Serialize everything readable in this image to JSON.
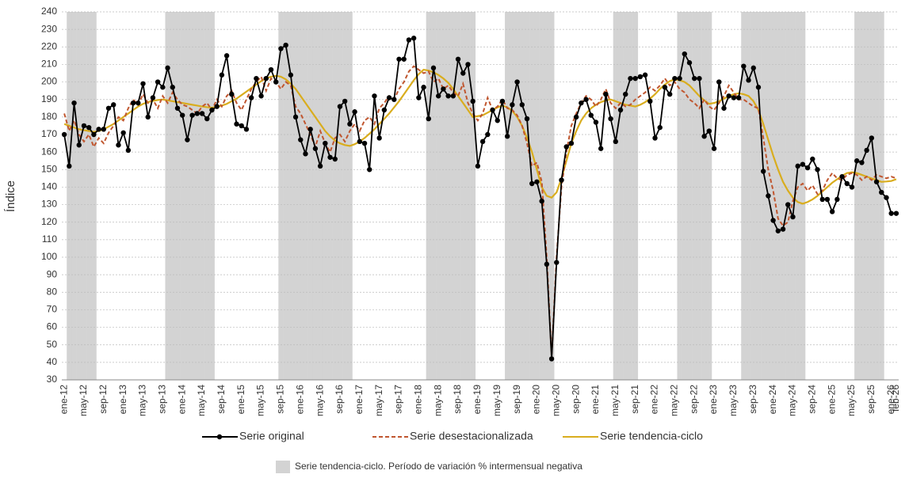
{
  "chart_data": {
    "type": "line",
    "y_label": "Índice",
    "shading_legend": "Serie tendencia-ciclo. Período de variación % intermensual negativa",
    "shading_color": "#d3d3d3",
    "grid": true,
    "ylim": [
      30,
      240
    ],
    "yticks": [
      30,
      40,
      50,
      60,
      70,
      80,
      90,
      100,
      110,
      120,
      130,
      140,
      150,
      160,
      170,
      180,
      190,
      200,
      210,
      220,
      230,
      240
    ],
    "categories": [
      "ene-12",
      null,
      null,
      null,
      "may-12",
      null,
      null,
      null,
      "sep-12",
      null,
      null,
      null,
      "ene-13",
      null,
      null,
      null,
      "may-13",
      null,
      null,
      null,
      "sep-13",
      null,
      null,
      null,
      "ene-14",
      null,
      null,
      null,
      "may-14",
      null,
      null,
      null,
      "sep-14",
      null,
      null,
      null,
      "ene-15",
      null,
      null,
      null,
      "may-15",
      null,
      null,
      null,
      "sep-15",
      null,
      null,
      null,
      "ene-16",
      null,
      null,
      null,
      "may-16",
      null,
      null,
      null,
      "sep-16",
      null,
      null,
      null,
      "ene-17",
      null,
      null,
      null,
      "may-17",
      null,
      null,
      null,
      "sep-17",
      null,
      null,
      null,
      "ene-18",
      null,
      null,
      null,
      "may-18",
      null,
      null,
      null,
      "sep-18",
      null,
      null,
      null,
      "ene-19",
      null,
      null,
      null,
      "may-19",
      null,
      null,
      null,
      "sep-19",
      null,
      null,
      null,
      "ene-20",
      null,
      null,
      null,
      "may-20",
      null,
      null,
      null,
      "sep-20",
      null,
      null,
      null,
      "ene-21",
      null,
      null,
      null,
      "may-21",
      null,
      null,
      null,
      "sep-21",
      null,
      null,
      null,
      "ene-22",
      null,
      null,
      null,
      "may-22",
      null,
      null,
      null,
      "sep-22",
      null,
      null,
      null,
      "ene-23",
      null,
      null,
      null,
      "may-23",
      null,
      null,
      null,
      "sep-23",
      null,
      null,
      null,
      "ene-24",
      null,
      null,
      null,
      "may-24",
      null,
      null,
      null,
      "sep-24",
      null,
      null,
      null,
      "ene-25",
      null,
      null,
      null,
      "may-25",
      null,
      null,
      null,
      "sep-25",
      null,
      null,
      null,
      "ene-26",
      "feb-26"
    ],
    "series": [
      {
        "name": "Serie original",
        "color": "#000000",
        "style": "solid-dots",
        "values": [
          170,
          152,
          188,
          164,
          175,
          174,
          170,
          173,
          173,
          185,
          187,
          164,
          171,
          161,
          188,
          188,
          199,
          180,
          191,
          200,
          197,
          208,
          197,
          185,
          181,
          167,
          181,
          182,
          182,
          179,
          184,
          186,
          204,
          215,
          193,
          176,
          175,
          173,
          191,
          202,
          192,
          202,
          207,
          200,
          219,
          221,
          204,
          180,
          167,
          159,
          173,
          162,
          152,
          165,
          157,
          156,
          186,
          189,
          176,
          183,
          166,
          165,
          150,
          192,
          168,
          184,
          191,
          190,
          213,
          213,
          224,
          225,
          191,
          197,
          179,
          208,
          192,
          196,
          192,
          192,
          213,
          205,
          210,
          189,
          152,
          166,
          170,
          184,
          178,
          189,
          169,
          187,
          200,
          187,
          179,
          142,
          143,
          132,
          96,
          42,
          97,
          144,
          163,
          165,
          180,
          188,
          190,
          181,
          177,
          162,
          193,
          179,
          166,
          184,
          193,
          202,
          202,
          203,
          204,
          189,
          168,
          174,
          197,
          193,
          202,
          202,
          216,
          211,
          202,
          202,
          169,
          172,
          162,
          200,
          185,
          192,
          191,
          191,
          209,
          201,
          208,
          197,
          149,
          135,
          121,
          115,
          116,
          130,
          123,
          152,
          153,
          151,
          156,
          150,
          133,
          133,
          126,
          133,
          146,
          142,
          140,
          155,
          154,
          161,
          168,
          143,
          137,
          134,
          125,
          125
        ]
      },
      {
        "name": "Serie desestacionalizada",
        "color": "#c0562f",
        "style": "dashed",
        "values": [
          182,
          172,
          178,
          170,
          166,
          170,
          163,
          168,
          165,
          171,
          175,
          180,
          178,
          185,
          190,
          187,
          193,
          188,
          190,
          185,
          192,
          188,
          194,
          190,
          187,
          186,
          184,
          182,
          186,
          188,
          184,
          190,
          186,
          192,
          195,
          188,
          184,
          190,
          196,
          200,
          203,
          195,
          202,
          200,
          196,
          200,
          198,
          186,
          182,
          176,
          170,
          163,
          172,
          165,
          160,
          168,
          170,
          166,
          172,
          176,
          172,
          178,
          180,
          176,
          185,
          188,
          192,
          190,
          196,
          200,
          206,
          209,
          207,
          205,
          206,
          200,
          202,
          196,
          198,
          194,
          192,
          199,
          188,
          182,
          178,
          182,
          191,
          184,
          186,
          190,
          185,
          184,
          181,
          175,
          165,
          152,
          154,
          143,
          100,
          43,
          100,
          140,
          160,
          175,
          182,
          188,
          192,
          190,
          186,
          190,
          196,
          188,
          185,
          188,
          186,
          187,
          190,
          192,
          194,
          197,
          195,
          198,
          202,
          198,
          200,
          196,
          194,
          190,
          188,
          185,
          190,
          186,
          184,
          188,
          192,
          198,
          194,
          190,
          190,
          188,
          186,
          185,
          168,
          150,
          138,
          122,
          118,
          120,
          132,
          140,
          142,
          138,
          141,
          136,
          138,
          144,
          148,
          145,
          144,
          147,
          148,
          147,
          144,
          146,
          144,
          147,
          146,
          145,
          146,
          145
        ]
      },
      {
        "name": "Serie tendencia-ciclo",
        "color": "#d9ad1e",
        "style": "solid",
        "values": [
          176,
          175,
          174,
          173,
          172.5,
          172,
          171.5,
          172,
          173,
          174.5,
          176,
          178,
          180,
          182,
          184,
          186,
          187.5,
          188.5,
          189.2,
          189.7,
          190,
          189.5,
          189,
          188.5,
          188,
          187.5,
          187,
          186.5,
          186,
          185.6,
          185.3,
          185.8,
          186.5,
          187.5,
          189,
          190.5,
          192.5,
          194.5,
          196.5,
          198.5,
          200.5,
          202,
          203,
          203.5,
          203,
          201.5,
          199,
          196,
          192,
          188,
          184,
          180,
          176,
          172,
          169,
          166.5,
          165,
          164,
          163.5,
          164.5,
          166,
          168,
          170.5,
          173,
          176,
          179,
          182,
          185.5,
          189,
          193,
          197,
          201,
          204.5,
          207,
          206.5,
          205.5,
          204,
          202,
          199.5,
          196,
          192,
          188,
          184,
          180,
          180.5,
          181,
          182.5,
          184,
          185.5,
          186.5,
          185.5,
          183.5,
          180,
          175,
          168,
          160,
          150,
          140,
          135,
          134,
          137,
          145,
          155,
          165,
          172,
          178,
          182,
          185,
          187,
          188.5,
          189.5,
          190,
          189,
          188,
          187,
          186.5,
          186,
          187,
          188.5,
          190.5,
          193,
          196,
          198.5,
          200.5,
          201.5,
          201,
          200,
          198,
          195,
          192,
          189.5,
          187.5,
          188,
          189,
          190.5,
          192,
          193,
          193.5,
          193,
          192,
          189,
          184,
          176,
          167,
          158,
          150,
          143,
          138,
          134,
          131.5,
          130.5,
          131.5,
          133,
          135,
          137.5,
          140,
          142.5,
          144.5,
          146.5,
          148,
          148.5,
          148,
          147,
          146,
          145,
          144,
          143,
          143.2,
          143.5,
          144.5
        ]
      }
    ]
  }
}
